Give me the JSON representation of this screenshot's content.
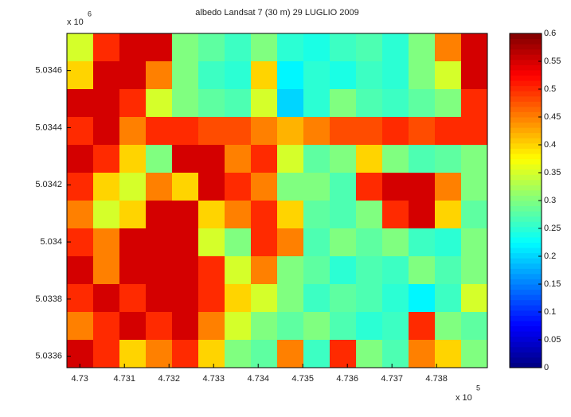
{
  "chart_data": {
    "type": "heatmap",
    "title": "albedo Landsat 7 (30 m) 29 LUGLIO 2009",
    "colormap": "jet",
    "z": [
      [
        0.35,
        0.5,
        0.55,
        0.55,
        0.3,
        0.28,
        0.26,
        0.3,
        0.25,
        0.24,
        0.26,
        0.27,
        0.25,
        0.3,
        0.45,
        0.55
      ],
      [
        0.4,
        0.55,
        0.55,
        0.45,
        0.3,
        0.26,
        0.25,
        0.4,
        0.22,
        0.25,
        0.24,
        0.26,
        0.25,
        0.3,
        0.35,
        0.55
      ],
      [
        0.55,
        0.55,
        0.5,
        0.35,
        0.3,
        0.28,
        0.27,
        0.35,
        0.2,
        0.25,
        0.3,
        0.27,
        0.26,
        0.28,
        0.3,
        0.5
      ],
      [
        0.5,
        0.55,
        0.45,
        0.5,
        0.5,
        0.48,
        0.48,
        0.45,
        0.42,
        0.45,
        0.48,
        0.48,
        0.5,
        0.48,
        0.5,
        0.5
      ],
      [
        0.55,
        0.5,
        0.4,
        0.3,
        0.55,
        0.55,
        0.45,
        0.5,
        0.35,
        0.28,
        0.3,
        0.4,
        0.3,
        0.27,
        0.28,
        0.3
      ],
      [
        0.5,
        0.4,
        0.35,
        0.45,
        0.4,
        0.55,
        0.5,
        0.45,
        0.3,
        0.3,
        0.27,
        0.5,
        0.55,
        0.55,
        0.45,
        0.3
      ],
      [
        0.45,
        0.35,
        0.4,
        0.55,
        0.55,
        0.4,
        0.45,
        0.5,
        0.4,
        0.28,
        0.27,
        0.3,
        0.5,
        0.55,
        0.4,
        0.28
      ],
      [
        0.5,
        0.45,
        0.55,
        0.55,
        0.55,
        0.35,
        0.3,
        0.5,
        0.45,
        0.27,
        0.3,
        0.28,
        0.3,
        0.26,
        0.25,
        0.3
      ],
      [
        0.55,
        0.45,
        0.55,
        0.55,
        0.55,
        0.5,
        0.35,
        0.45,
        0.3,
        0.28,
        0.25,
        0.27,
        0.26,
        0.3,
        0.27,
        0.3
      ],
      [
        0.5,
        0.55,
        0.5,
        0.55,
        0.55,
        0.5,
        0.4,
        0.35,
        0.3,
        0.26,
        0.28,
        0.27,
        0.25,
        0.22,
        0.26,
        0.35
      ],
      [
        0.45,
        0.5,
        0.55,
        0.5,
        0.55,
        0.45,
        0.35,
        0.3,
        0.28,
        0.3,
        0.27,
        0.25,
        0.26,
        0.5,
        0.3,
        0.28
      ],
      [
        0.55,
        0.5,
        0.4,
        0.45,
        0.5,
        0.4,
        0.3,
        0.28,
        0.45,
        0.26,
        0.5,
        0.3,
        0.27,
        0.45,
        0.4,
        0.3
      ]
    ],
    "xlim": [
      4.72971,
      4.73914
    ],
    "ylim": [
      5.03356,
      5.03473
    ],
    "xticks": [
      4.73,
      4.731,
      4.732,
      4.733,
      4.734,
      4.735,
      4.736,
      4.737,
      4.738
    ],
    "yticks": [
      5.0336,
      5.0338,
      5.034,
      5.0342,
      5.0344,
      5.0346
    ],
    "x_multiplier": "x 10",
    "x_multiplier_exponent": "5",
    "y_multiplier": "x 10",
    "y_multiplier_exponent": "6",
    "clim": [
      0,
      0.6
    ],
    "cticks": [
      0,
      0.05,
      0.1,
      0.15,
      0.2,
      0.25,
      0.3,
      0.35,
      0.4,
      0.45,
      0.5,
      0.55,
      0.6
    ]
  }
}
